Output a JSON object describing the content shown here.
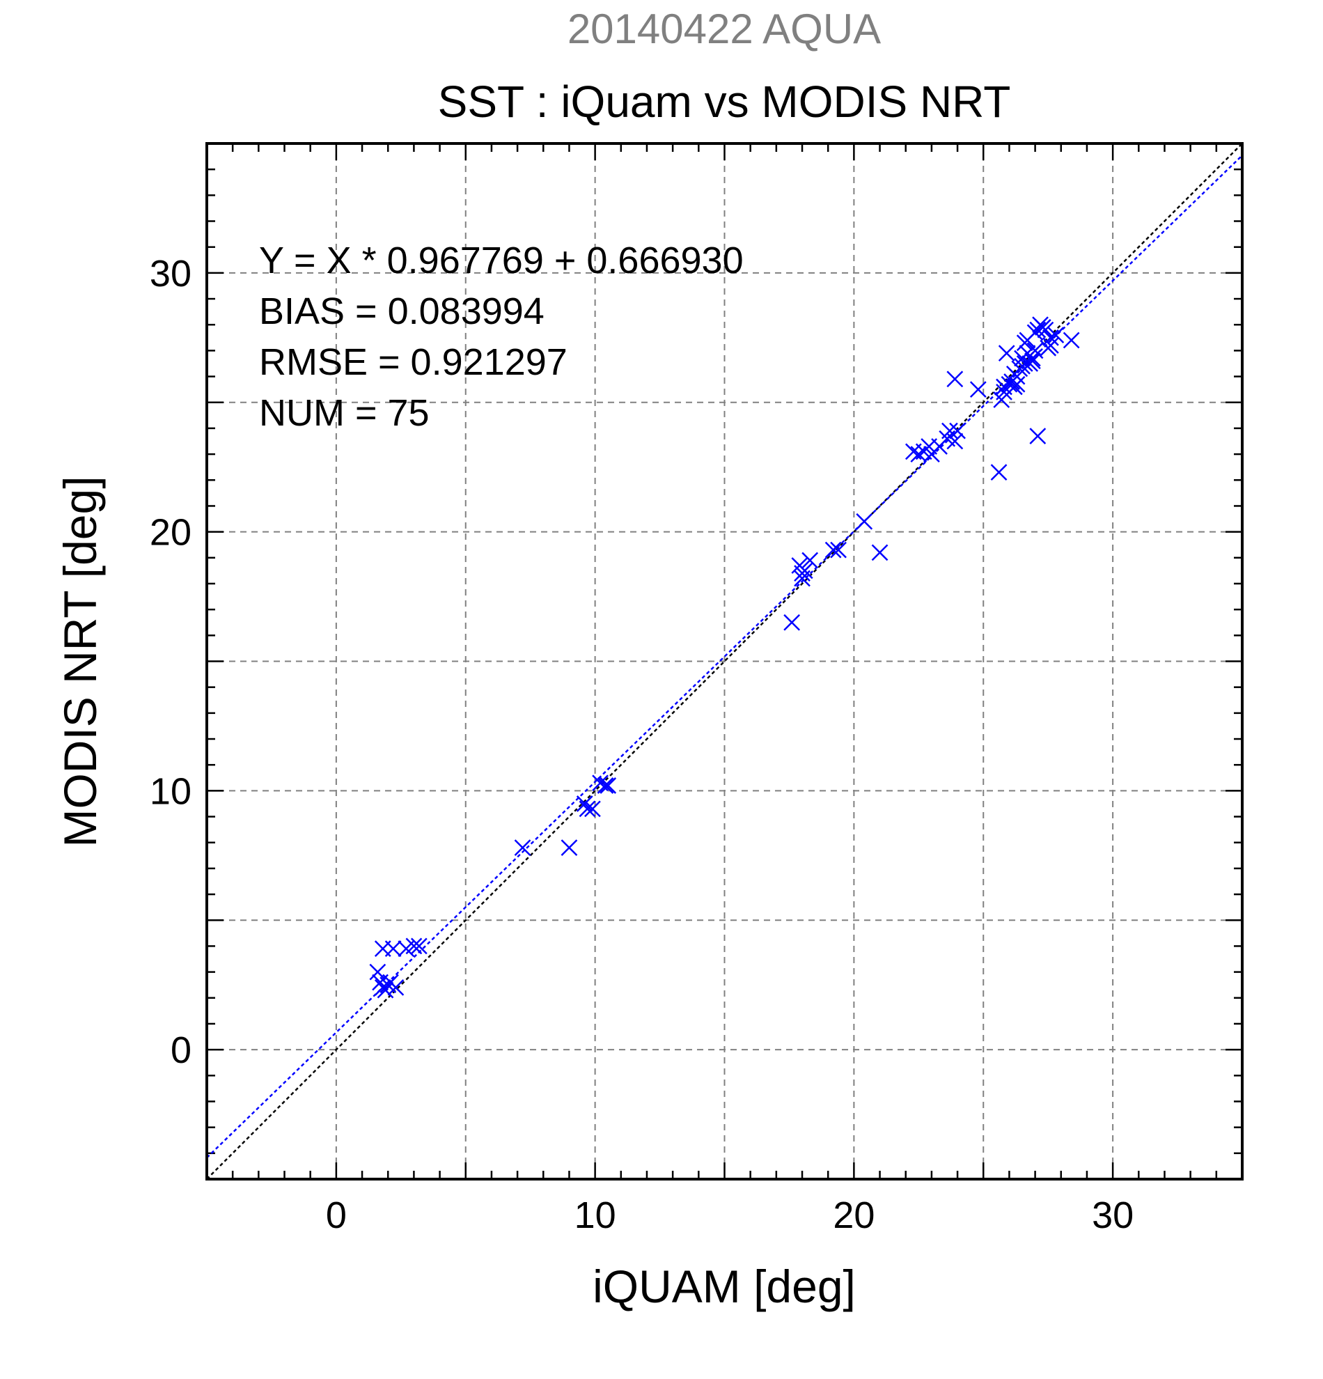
{
  "chart_data": {
    "type": "scatter",
    "supertitle": "20140422 AQUA",
    "title": "SST : iQuam vs MODIS NRT",
    "xlabel": "iQUAM [deg]",
    "ylabel": "MODIS NRT [deg]",
    "xlim": [
      -5,
      35
    ],
    "ylim": [
      -5,
      35
    ],
    "xticks": [
      0,
      10,
      20,
      30
    ],
    "yticks": [
      0,
      10,
      20,
      30
    ],
    "grid": true,
    "stats": {
      "line1": "Y = X * 0.967769 + 0.666930",
      "line2": "BIAS = 0.083994",
      "line3": "RMSE = 0.921297",
      "line4": "NUM = 75"
    },
    "fit": {
      "slope": 0.967769,
      "intercept": 0.66693
    },
    "colors": {
      "points": "#0000ff",
      "fit_line": "#0000ff",
      "identity_line": "#000000",
      "supertitle": "#808080",
      "grid": "#808080"
    },
    "points": [
      [
        1.6,
        3.0
      ],
      [
        1.7,
        2.6
      ],
      [
        1.8,
        3.9
      ],
      [
        1.8,
        2.4
      ],
      [
        1.9,
        2.3
      ],
      [
        2.0,
        2.5
      ],
      [
        2.1,
        2.6
      ],
      [
        2.2,
        3.9
      ],
      [
        2.3,
        2.4
      ],
      [
        2.7,
        3.9
      ],
      [
        3.0,
        4.0
      ],
      [
        3.2,
        4.0
      ],
      [
        7.2,
        7.8
      ],
      [
        9.0,
        7.8
      ],
      [
        9.6,
        9.5
      ],
      [
        9.7,
        9.3
      ],
      [
        9.9,
        9.3
      ],
      [
        10.2,
        10.3
      ],
      [
        10.4,
        10.2
      ],
      [
        10.5,
        10.2
      ],
      [
        17.6,
        16.5
      ],
      [
        17.9,
        18.7
      ],
      [
        18.0,
        18.4
      ],
      [
        18.0,
        18.2
      ],
      [
        18.1,
        18.5
      ],
      [
        18.3,
        18.9
      ],
      [
        19.2,
        19.3
      ],
      [
        19.4,
        19.3
      ],
      [
        20.4,
        20.4
      ],
      [
        21.0,
        19.2
      ],
      [
        22.3,
        23.1
      ],
      [
        22.5,
        23.0
      ],
      [
        22.7,
        23.1
      ],
      [
        22.9,
        23.3
      ],
      [
        23.0,
        23.0
      ],
      [
        23.3,
        23.3
      ],
      [
        23.6,
        23.6
      ],
      [
        23.7,
        23.9
      ],
      [
        23.9,
        23.5
      ],
      [
        24.0,
        23.9
      ],
      [
        23.9,
        25.9
      ],
      [
        24.8,
        25.5
      ],
      [
        25.6,
        22.3
      ],
      [
        25.7,
        25.1
      ],
      [
        25.8,
        25.6
      ],
      [
        25.9,
        26.9
      ],
      [
        26.1,
        25.8
      ],
      [
        26.2,
        25.6
      ],
      [
        26.3,
        26.0
      ],
      [
        26.4,
        26.3
      ],
      [
        26.5,
        26.7
      ],
      [
        26.6,
        27.3
      ],
      [
        26.7,
        27.4
      ],
      [
        26.8,
        26.5
      ],
      [
        26.9,
        26.7
      ],
      [
        27.0,
        27.0
      ],
      [
        27.1,
        27.8
      ],
      [
        27.1,
        23.7
      ],
      [
        27.2,
        28.0
      ],
      [
        27.3,
        27.9
      ],
      [
        27.4,
        27.8
      ],
      [
        27.5,
        27.1
      ],
      [
        27.6,
        27.2
      ],
      [
        27.8,
        27.6
      ],
      [
        28.4,
        27.4
      ],
      [
        26.3,
        25.7
      ],
      [
        26.5,
        26.4
      ],
      [
        26.6,
        26.5
      ],
      [
        26.9,
        26.6
      ],
      [
        26.2,
        26.1
      ],
      [
        26.0,
        25.7
      ],
      [
        26.7,
        26.9
      ],
      [
        27.0,
        27.7
      ],
      [
        27.6,
        27.5
      ],
      [
        25.8,
        25.4
      ]
    ]
  }
}
